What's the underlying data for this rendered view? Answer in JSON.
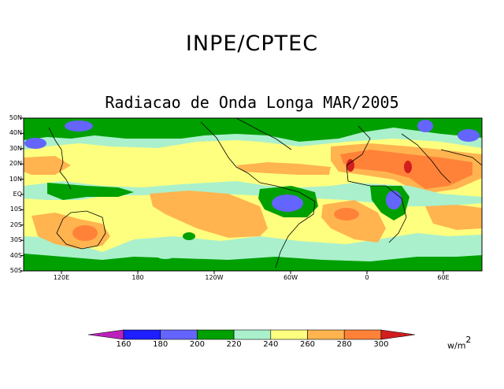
{
  "header": {
    "agency": "INPE/CPTEC",
    "map_title": "Radiacao de Onda Longa MAR/2005"
  },
  "axes": {
    "latitudes": [
      "50N",
      "40N",
      "30N",
      "20N",
      "10N",
      "EQ",
      "10S",
      "20S",
      "30S",
      "40S",
      "50S"
    ],
    "longitudes": [
      "120E",
      "180",
      "120W",
      "60W",
      "0",
      "60E"
    ]
  },
  "colorbar": {
    "levels": [
      "160",
      "180",
      "200",
      "220",
      "240",
      "260",
      "280",
      "300"
    ],
    "units_base": "w/m",
    "units_exp": "2",
    "colors": [
      "#bb22bb",
      "#1e1eff",
      "#6464ff",
      "#00a000",
      "#aaf0cc",
      "#ffff7f",
      "#ffb450",
      "#ff8238",
      "#d21e1e"
    ]
  }
}
